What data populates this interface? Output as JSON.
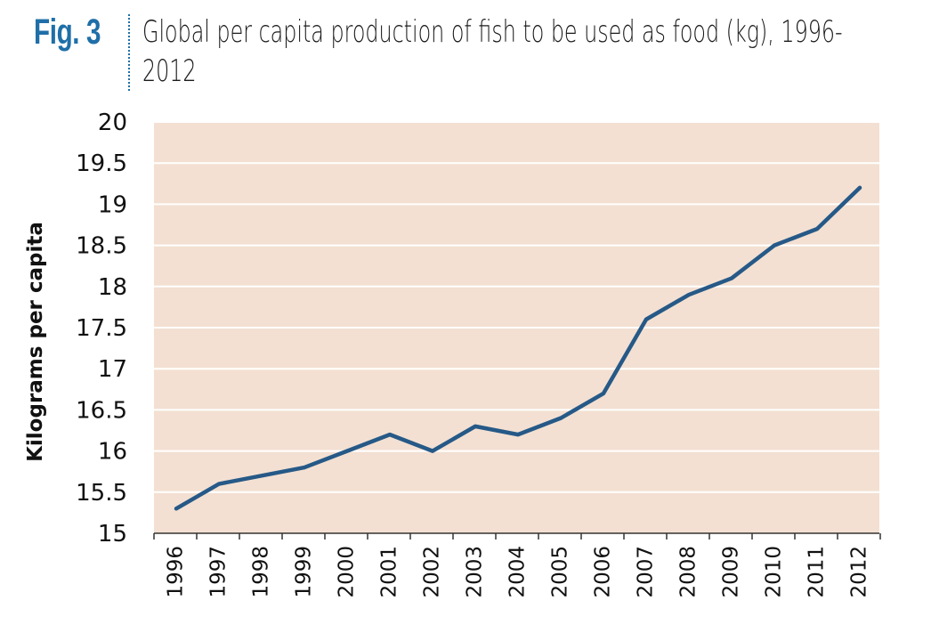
{
  "figure": {
    "label": "Fig. 3",
    "title": "Global per capita production of fish to be used as food (kg), 1996-2012"
  },
  "colors": {
    "accent": "#1f6fa8",
    "plot_background": "#f3e0d2",
    "gridline": "#ffffff",
    "line": "#265987",
    "axis": "#333333"
  },
  "chart_data": {
    "type": "line",
    "title": "Global per capita production of fish to be used as food (kg), 1996-2012",
    "xlabel": "",
    "ylabel": "Kilograms per capita",
    "categories": [
      "1996",
      "1997",
      "1998",
      "1999",
      "2000",
      "2001",
      "2002",
      "2003",
      "2004",
      "2005",
      "2006",
      "2007",
      "2008",
      "2009",
      "2010",
      "2011",
      "2012"
    ],
    "series": [
      {
        "values": [
          15.3,
          15.6,
          15.7,
          15.8,
          16.0,
          16.2,
          16.0,
          16.3,
          16.2,
          16.4,
          16.7,
          17.6,
          17.9,
          18.1,
          18.5,
          18.7,
          19.2
        ]
      }
    ],
    "ylim": [
      15,
      20
    ],
    "yticks": [
      "15",
      "15.5",
      "16",
      "16.5",
      "17",
      "17.5",
      "18",
      "18.5",
      "19",
      "19.5",
      "20"
    ],
    "grid": true,
    "legend": "none"
  }
}
